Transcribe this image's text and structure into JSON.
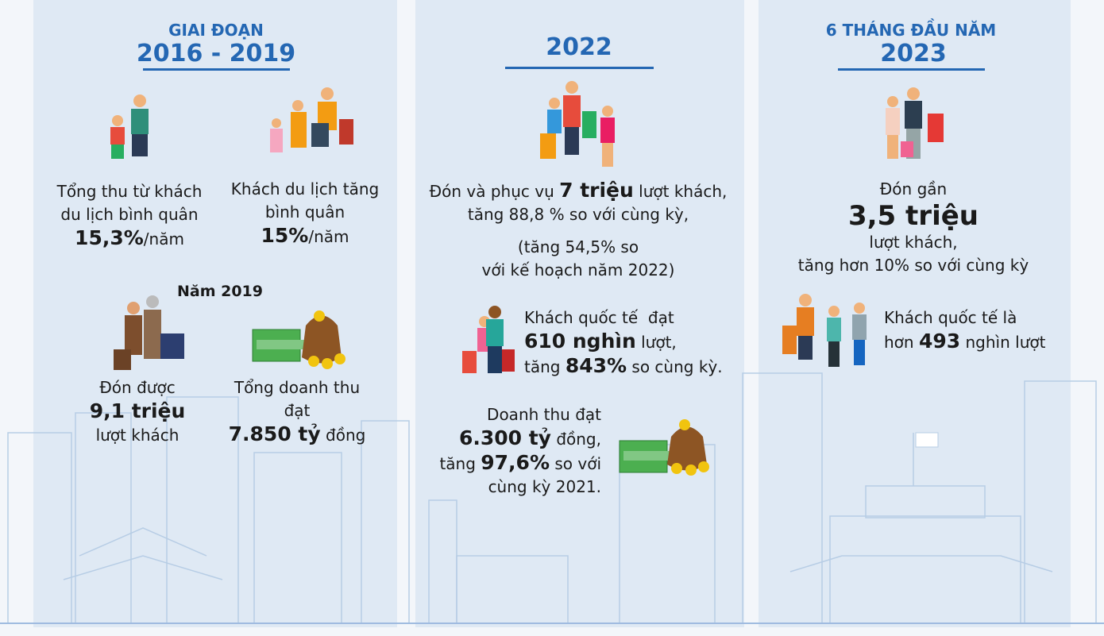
{
  "columns": [
    {
      "heading": "GIAI ĐOẠN",
      "period": "2016 - 2019",
      "blocks": [
        {
          "lines": [
            [
              "Tổng thu từ khách"
            ],
            [
              "du lịch bình quân"
            ],
            [
              {
                "bold": "15,3%"
              },
              "/năm"
            ]
          ]
        },
        {
          "lines": [
            [
              "Khách du lịch tăng"
            ],
            [
              "bình quân"
            ],
            [
              {
                "bold": "15%"
              },
              "/năm"
            ]
          ]
        },
        {
          "lines": [
            [
              {
                "bold": "Năm 2019"
              }
            ]
          ]
        },
        {
          "lines": [
            [
              "Đón được"
            ],
            [
              {
                "bold": "9,1 triệu"
              }
            ],
            [
              "lượt khách"
            ]
          ]
        },
        {
          "lines": [
            [
              "Tổng doanh thu"
            ],
            [
              "đạt"
            ],
            [
              {
                "bold": "7.850 tỷ"
              },
              " đồng"
            ]
          ]
        }
      ]
    },
    {
      "period": "2022",
      "blocks": [
        {
          "lines": [
            [
              "Đón và phục vụ ",
              {
                "bold": "7 triệu"
              },
              " lượt khách,"
            ],
            [
              "tăng 88,8 % so với cùng kỳ,"
            ],
            [
              "(tăng 54,5% so"
            ],
            [
              "với kế hoạch năm 2022)"
            ]
          ]
        },
        {
          "lines": [
            [
              "Khách quốc tế  đạt"
            ],
            [
              {
                "bold": "610 nghìn"
              },
              " lượt,"
            ],
            [
              "tăng ",
              {
                "bold": "843%"
              },
              " so cùng kỳ."
            ]
          ]
        },
        {
          "lines": [
            [
              "Doanh thu đạt"
            ],
            [
              {
                "bold": "6.300 tỷ"
              },
              " đồng,"
            ],
            [
              "tăng ",
              {
                "bold": "97,6%"
              },
              " so với"
            ],
            [
              "cùng kỳ 2021."
            ]
          ]
        }
      ]
    },
    {
      "heading": "6 THÁNG ĐẦU NĂM",
      "period": "2023",
      "blocks": [
        {
          "lines": [
            [
              "Đón gần"
            ],
            [
              {
                "bold": "3,5 triệu"
              }
            ],
            [
              "lượt khách,"
            ],
            [
              "tăng hơn 10% so với cùng kỳ"
            ]
          ]
        },
        {
          "lines": [
            [
              "Khách quốc tế là"
            ],
            [
              "hơn ",
              {
                "bold": "493"
              },
              " nghìn lượt"
            ]
          ]
        }
      ]
    }
  ]
}
